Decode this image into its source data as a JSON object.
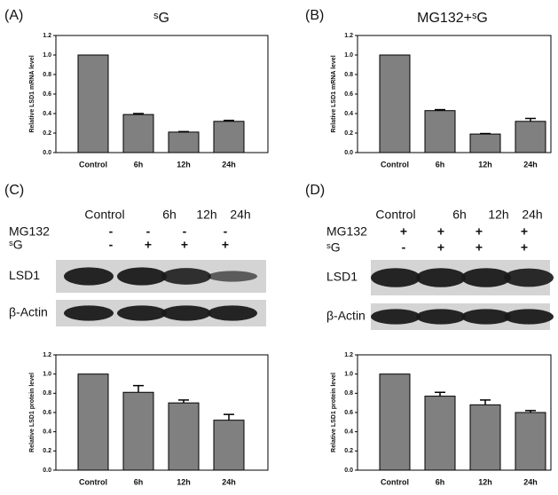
{
  "panels": [
    "(A)",
    "(B)",
    "(C)",
    "(D)"
  ],
  "blots": [
    {
      "columns": [
        "Control",
        "6h",
        "12h",
        "24h"
      ],
      "rows": [
        {
          "label": "MG132",
          "marks": [
            "-",
            "-",
            "-",
            "-"
          ]
        },
        {
          "label": "ˢG",
          "marks": [
            "-",
            "+",
            "+",
            "+"
          ]
        }
      ],
      "bands": [
        "LSD1",
        "β-Actin"
      ]
    },
    {
      "columns": [
        "Control",
        "6h",
        "12h",
        "24h"
      ],
      "rows": [
        {
          "label": "MG132",
          "marks": [
            "+",
            "+",
            "+",
            "+"
          ]
        },
        {
          "label": "ˢG",
          "marks": [
            "-",
            "+",
            "+",
            "+"
          ]
        }
      ],
      "bands": [
        "LSD1",
        "β-Actin"
      ]
    }
  ],
  "chart_data": [
    {
      "type": "bar",
      "title": "ˢG",
      "ylabel": "Relative LSD1 mRNA level",
      "color": "#808080",
      "categories": [
        "Control",
        "6h",
        "12h",
        "24h"
      ],
      "values": [
        1.0,
        0.39,
        0.21,
        0.32
      ],
      "errors": [
        0,
        0.01,
        0.005,
        0.01
      ],
      "ylim": [
        0,
        1.2
      ],
      "yticks": [
        {
          "value": 0,
          "label": "0.0"
        },
        0.2,
        0.4,
        0.6,
        0.8,
        {
          "value": 1,
          "label": "1.0"
        },
        1.2
      ]
    },
    {
      "type": "bar",
      "title": "MG132+ˢG",
      "ylabel": "Relative LSD1 mRNA level",
      "color": "#808080",
      "categories": [
        "Control",
        "6h",
        "12h",
        "24h"
      ],
      "values": [
        1.0,
        0.43,
        0.19,
        0.32
      ],
      "errors": [
        0,
        0.01,
        0.005,
        0.03
      ],
      "ylim": [
        0,
        1.2
      ],
      "yticks": [
        {
          "value": 0,
          "label": "0.0"
        },
        0.2,
        0.4,
        0.6,
        0.8,
        {
          "value": 1,
          "label": "1.0"
        },
        1.2
      ]
    },
    {
      "type": "bar",
      "ylabel": "Relative LSD1 protein level",
      "color": "#808080",
      "categories": [
        "Control",
        "6h",
        "12h",
        "24h"
      ],
      "values": [
        1.0,
        0.81,
        0.7,
        0.52
      ],
      "errors": [
        0,
        0.07,
        0.03,
        0.06
      ],
      "ylim": [
        0,
        1.2
      ],
      "yticks": [
        {
          "value": 0,
          "label": "0.0"
        },
        0.2,
        0.4,
        0.6,
        0.8,
        {
          "value": 1,
          "label": "1.0"
        },
        1.2
      ]
    },
    {
      "type": "bar",
      "ylabel": "Relative LSD1 protein level",
      "color": "#808080",
      "categories": [
        "Control",
        "6h",
        "12h",
        "24h"
      ],
      "values": [
        1.0,
        0.77,
        0.68,
        0.6
      ],
      "errors": [
        0,
        0.04,
        0.05,
        0.02
      ],
      "ylim": [
        0,
        1.2
      ],
      "yticks": [
        {
          "value": 0,
          "label": "0.0"
        },
        0.2,
        0.4,
        0.6,
        0.8,
        {
          "value": 1,
          "label": "1.0"
        },
        1.2
      ]
    }
  ]
}
